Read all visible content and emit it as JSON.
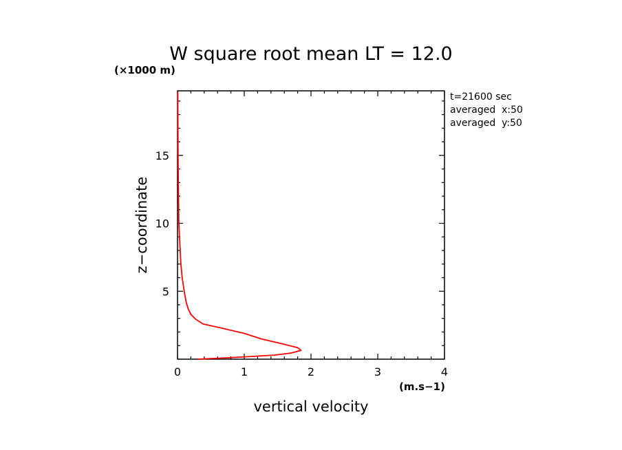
{
  "chart_data": {
    "type": "line",
    "title": "W square root mean LT = 12.0",
    "xlabel": "vertical velocity",
    "ylabel": "z−coordinate",
    "x_unit": "(m.s−1)",
    "y_unit": "(×1000 m)",
    "xlim": [
      0,
      4
    ],
    "ylim": [
      0,
      20
    ],
    "x_ticks": [
      0,
      1,
      2,
      3,
      4
    ],
    "y_ticks": [
      5,
      10,
      15
    ],
    "grid": false,
    "annotations": [
      "t=21600 sec",
      "averaged  x:50",
      "averaged  y:50"
    ],
    "series": [
      {
        "color": "#ff0000",
        "points": [
          [
            0.3,
            0.0
          ],
          [
            0.75,
            0.1
          ],
          [
            1.1,
            0.2
          ],
          [
            1.45,
            0.3
          ],
          [
            1.7,
            0.45
          ],
          [
            1.85,
            0.65
          ],
          [
            1.8,
            0.85
          ],
          [
            1.55,
            1.15
          ],
          [
            1.25,
            1.5
          ],
          [
            1.0,
            1.9
          ],
          [
            0.65,
            2.3
          ],
          [
            0.38,
            2.6
          ],
          [
            0.27,
            2.95
          ],
          [
            0.2,
            3.3
          ],
          [
            0.16,
            3.7
          ],
          [
            0.13,
            4.2
          ],
          [
            0.1,
            5.0
          ],
          [
            0.07,
            6.0
          ],
          [
            0.05,
            7.0
          ],
          [
            0.04,
            8.0
          ],
          [
            0.03,
            9.0
          ],
          [
            0.02,
            10.0
          ],
          [
            0.015,
            12.0
          ],
          [
            0.01,
            14.0
          ],
          [
            0.007,
            16.0
          ],
          [
            0.005,
            18.0
          ],
          [
            0.004,
            19.7
          ]
        ]
      }
    ]
  }
}
